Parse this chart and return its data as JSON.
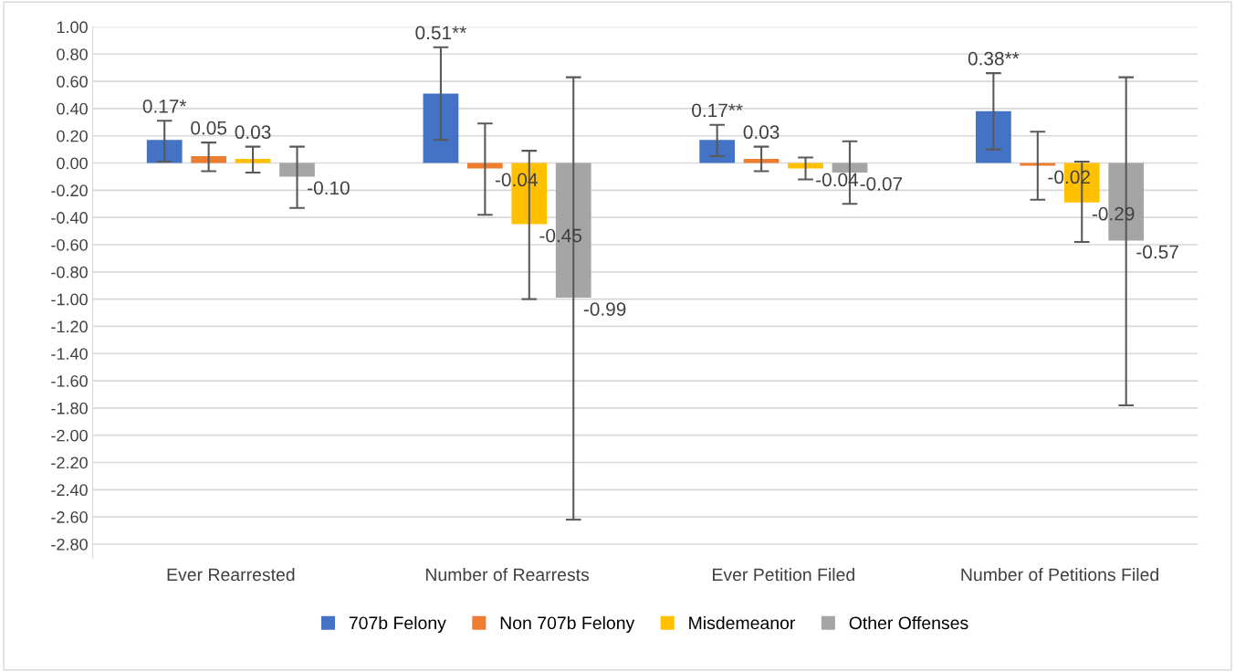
{
  "chart_data": {
    "type": "bar",
    "categories": [
      "Ever Rearrested",
      "Number of Rearrests",
      "Ever Petition Filed",
      "Number of Petitions Filed"
    ],
    "series": [
      {
        "name": "707b Felony",
        "color": "#4472c4",
        "values": [
          0.17,
          0.51,
          0.17,
          0.38
        ],
        "value_labels": [
          "0.17*",
          "0.51**",
          "0.17**",
          "0.38**"
        ],
        "errors": [
          [
            0.01,
            0.31
          ],
          [
            0.17,
            0.85
          ],
          [
            0.05,
            0.28
          ],
          [
            0.1,
            0.66
          ]
        ]
      },
      {
        "name": "Non 707b Felony",
        "color": "#ed7d31",
        "values": [
          0.05,
          -0.04,
          0.03,
          -0.02
        ],
        "value_labels": [
          "0.05",
          "-0.04",
          "0.03",
          "-0.02"
        ],
        "errors": [
          [
            -0.06,
            0.15
          ],
          [
            -0.38,
            0.29
          ],
          [
            -0.06,
            0.12
          ],
          [
            -0.27,
            0.23
          ]
        ]
      },
      {
        "name": "Misdemeanor",
        "color": "#ffc000",
        "values": [
          0.03,
          -0.45,
          -0.04,
          -0.29
        ],
        "value_labels": [
          "0.03",
          "-0.45",
          "-0.04",
          "-0.29"
        ],
        "errors": [
          [
            -0.07,
            0.12
          ],
          [
            -1.0,
            0.09
          ],
          [
            -0.12,
            0.04
          ],
          [
            -0.58,
            0.01
          ]
        ]
      },
      {
        "name": "Other Offenses",
        "color": "#a5a5a5",
        "values": [
          -0.1,
          -0.99,
          -0.07,
          -0.57
        ],
        "value_labels": [
          "-0.10",
          "-0.99",
          "-0.07",
          "-0.57"
        ],
        "errors": [
          [
            -0.33,
            0.12
          ],
          [
            -2.62,
            0.63
          ],
          [
            -0.3,
            0.16
          ],
          [
            -1.78,
            0.63
          ]
        ]
      }
    ],
    "ylim": [
      -2.9,
      1.0
    ],
    "yticks": [
      {
        "value": 1.0,
        "label": "1.00"
      },
      {
        "value": 0.8,
        "label": "0.80"
      },
      {
        "value": 0.6,
        "label": "0.60"
      },
      {
        "value": 0.4,
        "label": "0.40"
      },
      {
        "value": 0.2,
        "label": "0.20"
      },
      {
        "value": 0.0,
        "label": "0.00"
      },
      {
        "value": -0.2,
        "label": "-0.20"
      },
      {
        "value": -0.4,
        "label": "-0.40"
      },
      {
        "value": -0.6,
        "label": "-0.60"
      },
      {
        "value": -0.8,
        "label": "-0.80"
      },
      {
        "value": -1.0,
        "label": "-1.00"
      },
      {
        "value": -1.2,
        "label": "-1.20"
      },
      {
        "value": -1.4,
        "label": "-1.40"
      },
      {
        "value": -1.6,
        "label": "-1.60"
      },
      {
        "value": -1.8,
        "label": "-1.80"
      },
      {
        "value": -2.0,
        "label": "-2.00"
      },
      {
        "value": -2.2,
        "label": "-2.20"
      },
      {
        "value": -2.4,
        "label": "-2.40"
      },
      {
        "value": -2.6,
        "label": "-2.60"
      },
      {
        "value": -2.8,
        "label": "-2.80"
      }
    ],
    "grid": "y",
    "legend": "bottom"
  }
}
